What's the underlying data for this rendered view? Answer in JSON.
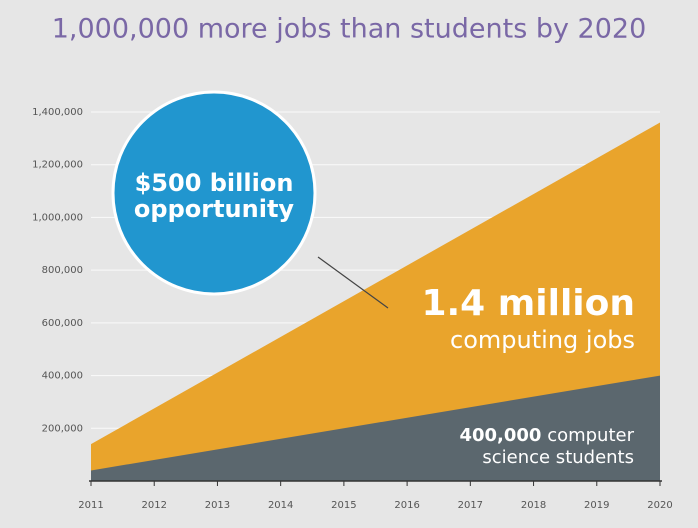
{
  "chart_data": {
    "type": "area",
    "title": "1,000,000 more jobs than students by 2020",
    "x": [
      2011,
      2020
    ],
    "xlim": [
      2011,
      2020
    ],
    "xticks": [
      2011,
      2012,
      2013,
      2014,
      2015,
      2016,
      2017,
      2018,
      2019,
      2020
    ],
    "ylim": [
      0,
      1400000
    ],
    "yticks": [
      {
        "value": 200000,
        "label": "200,000"
      },
      {
        "value": 400000,
        "label": "400,000"
      },
      {
        "value": 600000,
        "label": "600,000"
      },
      {
        "value": 800000,
        "label": "800,000"
      },
      {
        "value": 1000000,
        "label": "1,000,000"
      },
      {
        "value": 1200000,
        "label": "1,200,000"
      },
      {
        "value": 1400000,
        "label": "1,400,000"
      }
    ],
    "grid": true,
    "series": [
      {
        "name": "computing jobs",
        "color": "#e9a42c",
        "values": [
          140000,
          1360000
        ]
      },
      {
        "name": "computer science students",
        "color": "#5b676e",
        "values": [
          40000,
          400000
        ]
      }
    ],
    "annotations": {
      "circle": [
        "$500 billion",
        "opportunity"
      ],
      "jobs": [
        "1.4 million",
        "computing jobs"
      ],
      "students": [
        "400,000",
        "computer",
        "science students"
      ]
    }
  }
}
